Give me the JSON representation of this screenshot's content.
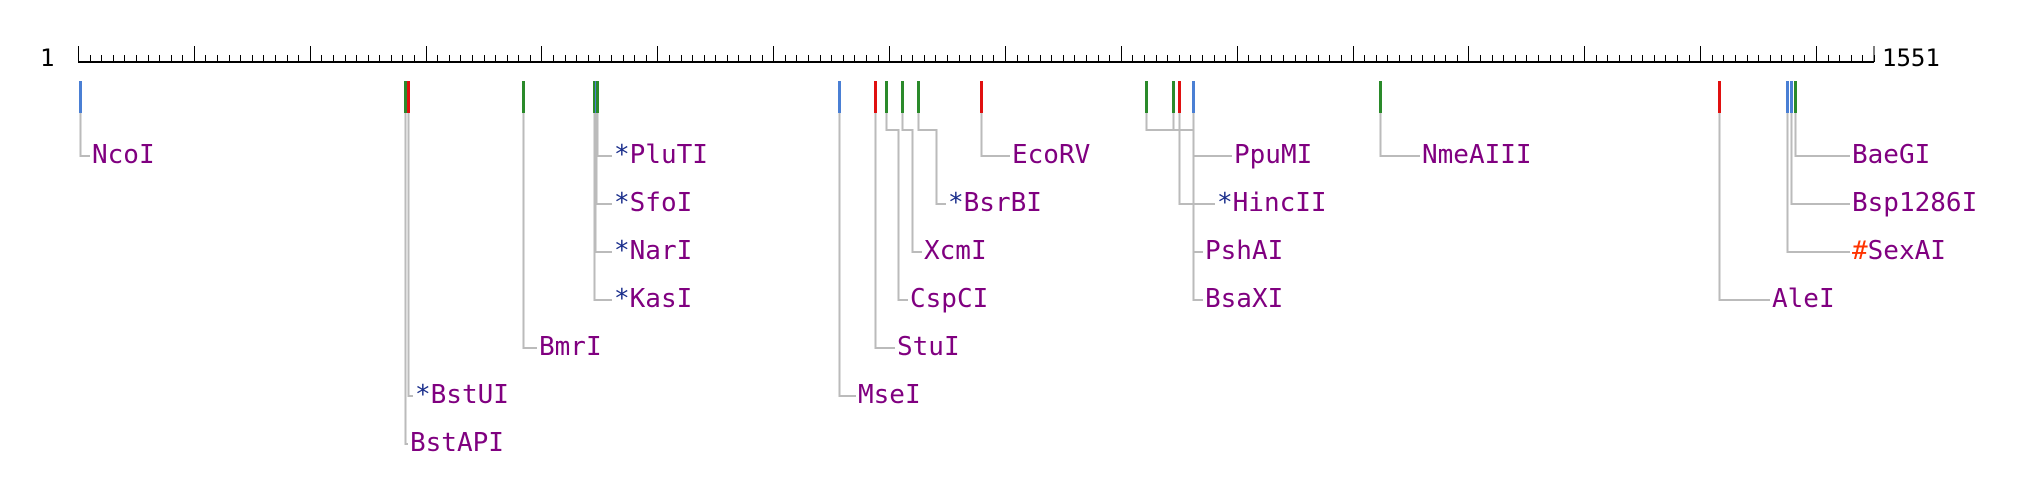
{
  "ruler": {
    "start": "1",
    "end": "1551",
    "length": 1551
  },
  "colors": {
    "enzyme_name": "#800080",
    "star_prefix": "#1a2e8c",
    "hash_prefix": "#ff3300",
    "cut_blue": "#4a7fd4",
    "cut_red": "#e01010",
    "cut_green": "#2a8a2a",
    "leader": "#bbbbbb",
    "ruler": "#000000"
  },
  "sites": [
    {
      "name": "NcoI",
      "prefix": "",
      "pos": 3,
      "color": "blue"
    },
    {
      "name": "BstAPI",
      "prefix": "",
      "pos": 283,
      "color": "green"
    },
    {
      "name": "BstUI",
      "prefix": "*",
      "pos": 286,
      "color": "red"
    },
    {
      "name": "BmrI",
      "prefix": "",
      "pos": 385,
      "color": "green"
    },
    {
      "name": "KasI",
      "prefix": "*",
      "pos": 446,
      "color": "green"
    },
    {
      "name": "NarI",
      "prefix": "*",
      "pos": 447,
      "color": "green"
    },
    {
      "name": "SfoI",
      "prefix": "*",
      "pos": 448,
      "color": "blue"
    },
    {
      "name": "PluTI",
      "prefix": "*",
      "pos": 449,
      "color": "green"
    },
    {
      "name": "MseI",
      "prefix": "",
      "pos": 658,
      "color": "blue"
    },
    {
      "name": "StuI",
      "prefix": "",
      "pos": 689,
      "color": "red"
    },
    {
      "name": "CspCI",
      "prefix": "",
      "pos": 698,
      "color": "green"
    },
    {
      "name": "XcmI",
      "prefix": "",
      "pos": 712,
      "color": "green"
    },
    {
      "name": "BsrBI",
      "prefix": "*",
      "pos": 726,
      "color": "green"
    },
    {
      "name": "EcoRV",
      "prefix": "",
      "pos": 780,
      "color": "red"
    },
    {
      "name": "BsaXI",
      "prefix": "",
      "pos": 923,
      "color": "green"
    },
    {
      "name": "PshAI",
      "prefix": "",
      "pos": 946,
      "color": "green"
    },
    {
      "name": "HincII",
      "prefix": "*",
      "pos": 951,
      "color": "red"
    },
    {
      "name": "PpuMI",
      "prefix": "",
      "pos": 963,
      "color": "blue"
    },
    {
      "name": "NmeAIII",
      "prefix": "",
      "pos": 1125,
      "color": "green"
    },
    {
      "name": "AleI",
      "prefix": "",
      "pos": 1417,
      "color": "red"
    },
    {
      "name": "SexAI",
      "prefix": "#",
      "pos": 1476,
      "color": "blue"
    },
    {
      "name": "Bsp1286I",
      "prefix": "",
      "pos": 1479,
      "color": "blue"
    },
    {
      "name": "BaeGI",
      "prefix": "",
      "pos": 1483,
      "color": "green"
    }
  ]
}
